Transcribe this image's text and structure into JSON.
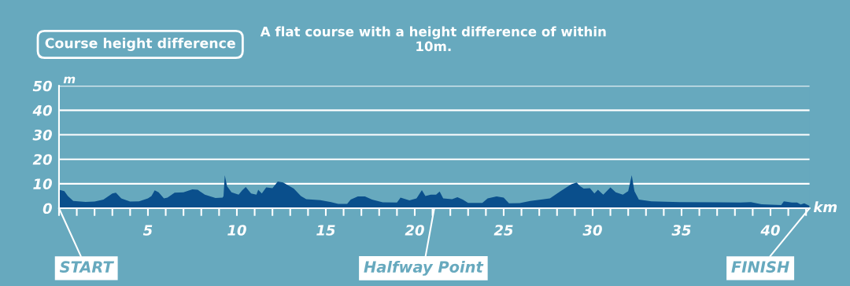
{
  "chart_data": {
    "type": "area",
    "title": "Course height difference",
    "subtitle": "A flat course with a height difference of within 10m.",
    "xlabel": "km",
    "ylabel": "m",
    "x": [
      0,
      0.3,
      0.5,
      0.8,
      1.5,
      2,
      2.5,
      3.0,
      3.2,
      3.5,
      4,
      4.5,
      5,
      5.2,
      5.38,
      5.6,
      5.9,
      6.1,
      6.5,
      7,
      7.5,
      7.8,
      8.2,
      8.8,
      9.2,
      9.25,
      9.32,
      9.45,
      9.7,
      10.1,
      10.3,
      10.5,
      10.8,
      11.1,
      11.2,
      11.4,
      11.65,
      12.0,
      12.3,
      12.6,
      13.2,
      13.6,
      13.9,
      14.7,
      15.3,
      15.7,
      16.2,
      16.4,
      16.8,
      17.2,
      17.6,
      18.2,
      19.0,
      19.2,
      19.7,
      20.1,
      20.4,
      20.6,
      20.9,
      21.2,
      21.4,
      21.6,
      22.1,
      22.4,
      22.7,
      23.0,
      23.8,
      24.1,
      24.6,
      25.0,
      25.3,
      25.9,
      26.5,
      27.6,
      28.2,
      28.8,
      29.1,
      29.3,
      29.5,
      29.85,
      30.1,
      30.3,
      30.6,
      31.0,
      31.3,
      31.7,
      32.0,
      32.2,
      32.35,
      32.6,
      33.3,
      34.9,
      37.1,
      38.3,
      38.9,
      39.5,
      40.6,
      40.75,
      41.2,
      41.5,
      41.7,
      41.9,
      42.195
    ],
    "series": [
      {
        "color": "#0a4f8c",
        "values": [
          7.5,
          7,
          5,
          3,
          2.6,
          2.7,
          3.5,
          6,
          6.3,
          4,
          2.7,
          2.8,
          4,
          5,
          7.3,
          6.5,
          4,
          4.3,
          6.3,
          6.5,
          7.7,
          7.5,
          5.5,
          4.2,
          4.3,
          5,
          13.5,
          9,
          6.5,
          5.5,
          7.3,
          8.7,
          6,
          5.5,
          7.5,
          6,
          8.5,
          8.2,
          10.9,
          10.5,
          8,
          5,
          3.7,
          3.3,
          2.5,
          1.8,
          1.8,
          3.5,
          4.8,
          4.8,
          3.5,
          2.4,
          2.3,
          4.3,
          3.2,
          4,
          7.4,
          5,
          5.5,
          5.5,
          6.8,
          4,
          3.7,
          4.5,
          3.5,
          2.2,
          2.2,
          4,
          4.8,
          4.3,
          2,
          2.1,
          3,
          4,
          7,
          9.8,
          10.5,
          9,
          8,
          8.2,
          6,
          7.5,
          5.5,
          8.5,
          6.5,
          5.5,
          7,
          13.5,
          7,
          3.5,
          2.8,
          2.5,
          2.4,
          2.3,
          2.5,
          1.6,
          1.3,
          2.8,
          2.3,
          2.3,
          1.5,
          2,
          1
        ]
      }
    ],
    "xlim": [
      0,
      42.195
    ],
    "ylim": [
      0,
      50
    ],
    "yticks": [
      0,
      10,
      20,
      30,
      40,
      50
    ],
    "xticks": [
      {
        "value": 0,
        "label": null
      },
      {
        "value": 1,
        "label": null
      },
      {
        "value": 2,
        "label": null
      },
      {
        "value": 3,
        "label": null
      },
      {
        "value": 4,
        "label": null
      },
      5,
      {
        "value": 6,
        "label": null
      },
      {
        "value": 7,
        "label": null
      },
      {
        "value": 8,
        "label": null
      },
      {
        "value": 9,
        "label": null
      },
      10,
      {
        "value": 11,
        "label": null
      },
      {
        "value": 12,
        "label": null
      },
      {
        "value": 13,
        "label": null
      },
      {
        "value": 14,
        "label": null
      },
      15,
      {
        "value": 16,
        "label": null
      },
      {
        "value": 17,
        "label": null
      },
      {
        "value": 18,
        "label": null
      },
      {
        "value": 19,
        "label": null
      },
      20,
      {
        "value": 21,
        "label": null
      },
      {
        "value": 22,
        "label": null
      },
      {
        "value": 23,
        "label": null
      },
      {
        "value": 24,
        "label": null
      },
      25,
      {
        "value": 26,
        "label": null
      },
      {
        "value": 27,
        "label": null
      },
      {
        "value": 28,
        "label": null
      },
      {
        "value": 29,
        "label": null
      },
      30,
      {
        "value": 31,
        "label": null
      },
      {
        "value": 32,
        "label": null
      },
      {
        "value": 33,
        "label": null
      },
      {
        "value": 34,
        "label": null
      },
      35,
      {
        "value": 36,
        "label": null
      },
      {
        "value": 37,
        "label": null
      },
      {
        "value": 38,
        "label": null
      },
      {
        "value": 39,
        "label": null
      },
      40,
      {
        "value": 41,
        "label": null
      },
      {
        "value": 42,
        "label": null
      }
    ],
    "grid": "y",
    "annotations": [
      {
        "text": "START",
        "x": 0,
        "y": 0
      },
      {
        "text": "Halfway Point",
        "x": 21.0975,
        "y": 0
      },
      {
        "text": "FINISH",
        "x": 42.195,
        "y": 0
      }
    ]
  }
}
